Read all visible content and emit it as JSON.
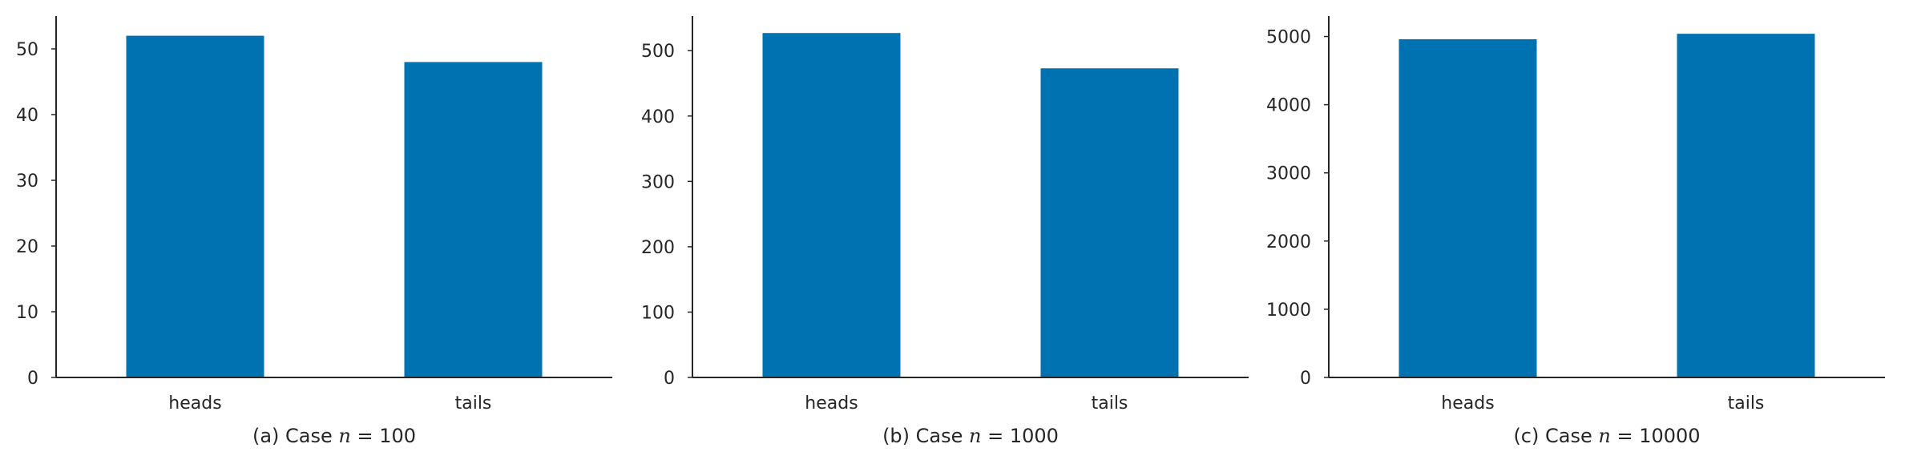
{
  "chart_data": [
    {
      "type": "bar",
      "categories": [
        "heads",
        "tails"
      ],
      "values": [
        52,
        48
      ],
      "ylim": [
        0,
        55
      ],
      "yticks": [
        0,
        10,
        20,
        30,
        40,
        50
      ],
      "title": "",
      "xlabel": "",
      "ylabel": "",
      "caption": {
        "prefix": "(a) Case ",
        "var": "n",
        "eq": " = ",
        "value": "100"
      },
      "bar_color": "#0072b2",
      "grid": false
    },
    {
      "type": "bar",
      "categories": [
        "heads",
        "tails"
      ],
      "values": [
        527,
        473
      ],
      "ylim": [
        0,
        553
      ],
      "yticks": [
        0,
        100,
        200,
        300,
        400,
        500
      ],
      "title": "",
      "xlabel": "",
      "ylabel": "",
      "caption": {
        "prefix": "(b) Case ",
        "var": "n",
        "eq": " = ",
        "value": "1000"
      },
      "bar_color": "#0072b2",
      "grid": false
    },
    {
      "type": "bar",
      "categories": [
        "heads",
        "tails"
      ],
      "values": [
        4960,
        5040
      ],
      "ylim": [
        0,
        5300
      ],
      "yticks": [
        0,
        1000,
        2000,
        3000,
        4000,
        5000
      ],
      "title": "",
      "xlabel": "",
      "ylabel": "",
      "caption": {
        "prefix": "(c) Case ",
        "var": "n",
        "eq": " = ",
        "value": "10000"
      },
      "bar_color": "#0072b2",
      "grid": false
    }
  ]
}
